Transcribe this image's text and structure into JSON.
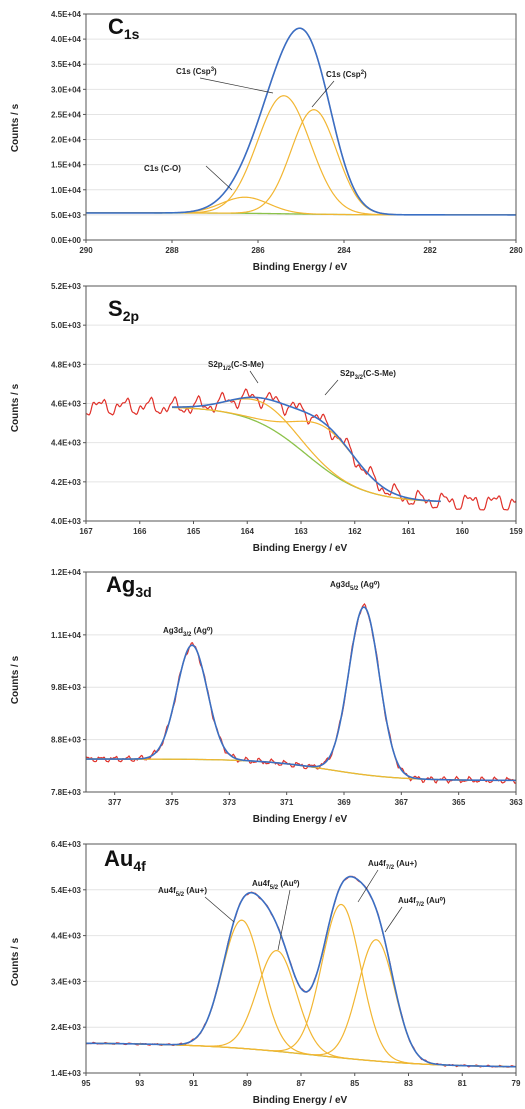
{
  "colors": {
    "raw": "#e0312a",
    "envelope": "#3a6fc4",
    "component": "#f2b632",
    "background": "#8cc24a",
    "grid": "#e4e4e4",
    "axis": "#555555"
  },
  "chart_data": [
    {
      "type": "line",
      "title_main": "C",
      "title_sub": "1s",
      "xlabel": "Binding Energy / eV",
      "ylabel": "Counts / s",
      "xlim": [
        290,
        280
      ],
      "ylim": [
        0,
        45000
      ],
      "x_ticks": [
        290,
        288,
        286,
        284,
        282,
        280
      ],
      "x_tick_labels": [
        "290",
        "288",
        "286",
        "284",
        "282",
        "280"
      ],
      "y_ticks": [
        0,
        5000,
        10000,
        15000,
        20000,
        25000,
        30000,
        35000,
        40000,
        45000
      ],
      "y_tick_labels": [
        "0.0E+00",
        "5.0E+03",
        "1.0E+04",
        "1.5E+04",
        "2.0E+04",
        "2.5E+04",
        "3.0E+04",
        "3.5E+04",
        "4.0E+04",
        "4.5E+04"
      ],
      "grid": true,
      "legend": "none",
      "fit_range": [
        290,
        280
      ],
      "raw_range": [
        290,
        280
      ],
      "noise": 0,
      "background_curve": {
        "low": 5000,
        "high": 5400,
        "center": 285.2,
        "width": 0.8
      },
      "components": [
        {
          "center": 286.3,
          "height": 3200,
          "fwhm": 1.3,
          "label": "C1s (C-O)"
        },
        {
          "center": 285.4,
          "height": 23500,
          "fwhm": 1.45,
          "label": "C1s (Csp³)"
        },
        {
          "center": 284.7,
          "height": 20800,
          "fwhm": 1.25,
          "label": "C1s (Csp²)"
        }
      ],
      "annotations": [
        {
          "text": "C1s (C-O)",
          "at": [
            287.7,
            14500
          ],
          "to": [
            286.45,
            8600
          ]
        },
        {
          "text": "C1s (Csp³)",
          "at": [
            286.3,
            31800
          ],
          "to": [
            285.45,
            28000
          ]
        },
        {
          "text": "C1s (Csp²)",
          "at": [
            283.4,
            28800
          ],
          "to": [
            284.6,
            25600
          ]
        }
      ]
    },
    {
      "type": "line",
      "title_main": "S",
      "title_sub": "2p",
      "xlabel": "Binding Energy / eV",
      "ylabel": "Counts / s",
      "xlim": [
        167,
        159
      ],
      "ylim": [
        4000,
        5200
      ],
      "x_ticks": [
        167,
        166,
        165,
        164,
        163,
        162,
        161,
        160,
        159
      ],
      "x_tick_labels": [
        "167",
        "166",
        "165",
        "164",
        "163",
        "162",
        "161",
        "160",
        "159"
      ],
      "y_ticks": [
        4000,
        4200,
        4400,
        4600,
        4800,
        5000,
        5200
      ],
      "y_tick_labels": [
        "4.0E+03",
        "4.2E+03",
        "4.4E+03",
        "4.6E+03",
        "4.8E+03",
        "5.0E+03",
        "5.2E+03"
      ],
      "grid": true,
      "legend": "none",
      "fit_range": [
        165.4,
        160.4
      ],
      "raw_range": [
        167,
        159
      ],
      "noise": 55,
      "background_curve": {
        "low": 4095,
        "high": 4585,
        "center": 162.9,
        "width": 0.55
      },
      "components": [
        {
          "center": 163.7,
          "height": 110,
          "fwhm": 1.4,
          "label": "S2p1/2(C-S-Me)"
        },
        {
          "center": 162.5,
          "height": 215,
          "fwhm": 1.35,
          "label": "S2p3/2(C-S-Me)"
        }
      ],
      "annotations": [
        {
          "text": "S2p1/2(C-S-Me)",
          "at": [
            164.8,
            4725
          ],
          "to": [
            163.6,
            4640
          ]
        },
        {
          "text": "S2p3/2(C-S-Me)",
          "at": [
            162.0,
            4665
          ],
          "to": [
            162.6,
            4595
          ]
        }
      ]
    },
    {
      "type": "line",
      "title_main": "Ag",
      "title_sub": "3d",
      "xlabel": "Binding Energy / eV",
      "ylabel": "Counts / s",
      "xlim": [
        378,
        363
      ],
      "ylim": [
        7800,
        12000
      ],
      "x_ticks": [
        377,
        375,
        373,
        371,
        369,
        367,
        365,
        363
      ],
      "x_tick_labels": [
        "377",
        "375",
        "373",
        "371",
        "369",
        "367",
        "365",
        "363"
      ],
      "y_ticks": [
        7800,
        8800,
        9800,
        10800,
        12000
      ],
      "y_tick_labels": [
        "7.8E+03",
        "8.8E+03",
        "9.8E+03",
        "1.1E+04",
        "1.2E+04"
      ],
      "grid": true,
      "legend": "none",
      "fit_range": [
        378,
        363
      ],
      "raw_range": [
        378,
        363
      ],
      "noise": 70,
      "background_curve": {
        "low": 8020,
        "high": 8430,
        "center": 369.5,
        "width": 1.2
      },
      "components": [
        {
          "center": 374.3,
          "height": 2180,
          "fwhm": 1.25,
          "label": "Ag3d3/2 (Ag⁰)"
        },
        {
          "center": 368.3,
          "height": 3200,
          "fwhm": 1.25,
          "label": "Ag3d5/2 (Ag⁰)"
        }
      ],
      "annotations": []
    },
    {
      "type": "line",
      "title_main": "Au",
      "title_sub": "4f",
      "xlabel": "Binding Energy / eV",
      "ylabel": "Counts / s",
      "xlim": [
        95,
        79
      ],
      "ylim": [
        1400,
        6400
      ],
      "x_ticks": [
        95,
        93,
        91,
        89,
        87,
        85,
        83,
        81,
        79
      ],
      "x_tick_labels": [
        "95",
        "93",
        "91",
        "89",
        "87",
        "85",
        "83",
        "81",
        "79"
      ],
      "y_ticks": [
        1400,
        2400,
        3400,
        4400,
        5400,
        6400
      ],
      "y_tick_labels": [
        "1.4E+03",
        "2.4E+03",
        "3.4E+03",
        "4.4E+03",
        "5.4E+03",
        "6.4E+03"
      ],
      "grid": true,
      "legend": "none",
      "fit_range": [
        95,
        79
      ],
      "raw_range": [
        95,
        79
      ],
      "noise": 25,
      "background_curve": {
        "low": 1520,
        "high": 2060,
        "center": 86.5,
        "width": 2.2
      },
      "components": [
        {
          "center": 89.2,
          "height": 2800,
          "fwhm": 1.7,
          "label": "Au4f5/2 (Au+)"
        },
        {
          "center": 87.9,
          "height": 2200,
          "fwhm": 1.7,
          "label": "Au4f5/2 (Au⁰)"
        },
        {
          "center": 85.5,
          "height": 3350,
          "fwhm": 1.7,
          "label": "Au4f7/2 (Au+)"
        },
        {
          "center": 84.2,
          "height": 2650,
          "fwhm": 1.6,
          "label": "Au4f7/2 (Au⁰)"
        }
      ],
      "annotations": []
    }
  ],
  "labels": {
    "ag_peak1": "Ag3d",
    "ag_peak1_sub": "3/2",
    "ag_peak1_tail": " (Ag⁰)",
    "ag_peak2": "Ag3d",
    "ag_peak2_sub": "5/2",
    "ag_peak2_tail": " (Ag⁰)",
    "au_peak1": "Au4f",
    "au_peak1_sub": "5/2",
    "au_peak1_tail": " (Au+)",
    "au_peak2": "Au4f",
    "au_peak2_sub": "5/2",
    "au_peak2_tail": " (Au⁰)",
    "au_peak3": "Au4f",
    "au_peak3_sub": "7/2",
    "au_peak3_tail": " (Au+)",
    "au_peak4": "Au4f",
    "au_peak4_sub": "7/2",
    "au_peak4_tail": " (Au⁰)",
    "s_peak1": "S2p",
    "s_peak1_sub": "1/2",
    "s_peak1_tail": "(C-S-Me)",
    "s_peak2": "S2p",
    "s_peak2_sub": "3/2",
    "s_peak2_tail": "(C-S-Me)",
    "c_peak1": "C1s (C-O)",
    "c_peak2": "C1s (Csp",
    "c_peak2_sup": "3",
    "c_peak2_tail": ")",
    "c_peak3": "C1s (Csp",
    "c_peak3_sup": "2",
    "c_peak3_tail": ")"
  }
}
